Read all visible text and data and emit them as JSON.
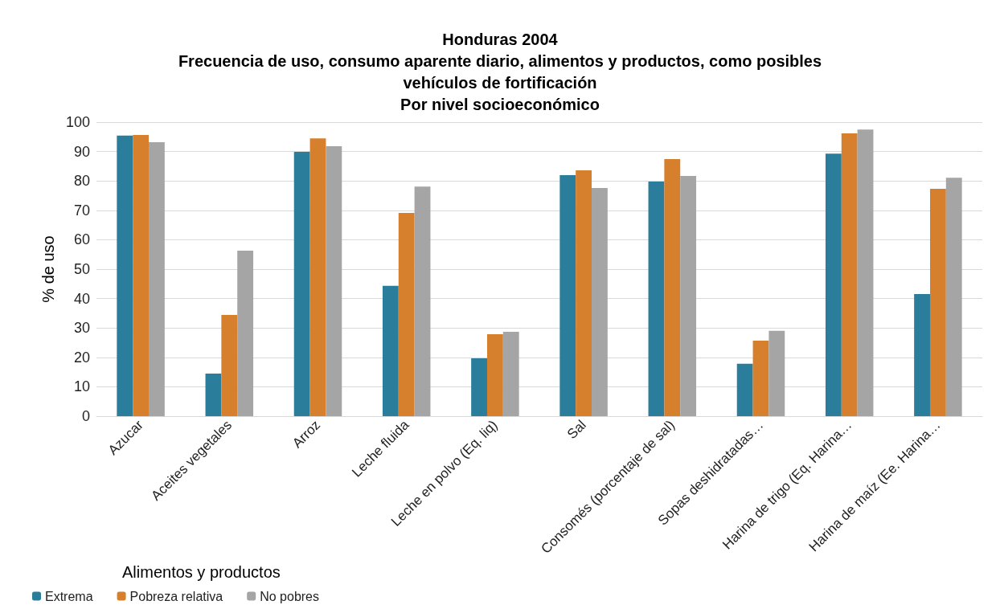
{
  "chart_data": {
    "type": "bar",
    "title": "Honduras 2004\nFrecuencia de uso, consumo aparente diario, alimentos y productos, como posibles\nvehículos de fortificación\nPor nivel socioeconómico",
    "ylabel": "% de uso",
    "legend_title": "Alimentos y productos",
    "categories": [
      "Azucar",
      "Aceites vegetales",
      "Arroz",
      "Leche fluida",
      "Leche en polvo (Eq. liq)",
      "Sal",
      "Consomés (porcentaje de sal)",
      "Sopas deshidratadas…",
      "Harina de trigo (Eq. Harina…",
      "Harina de maíz (Ee. Harina…"
    ],
    "series": [
      {
        "name": "Extrema",
        "color": "#2a7d9b",
        "values": [
          95.4,
          14.5,
          89.9,
          44.3,
          19.7,
          82,
          79.8,
          17.8,
          89.3,
          41.5
        ]
      },
      {
        "name": "Pobreza relativa",
        "color": "#d67f2c",
        "values": [
          95.6,
          34.4,
          94.5,
          69.1,
          27.9,
          83.6,
          87.4,
          25.7,
          96.2,
          77.3
        ]
      },
      {
        "name": "No pobres",
        "color": "#a5a5a5",
        "values": [
          93.2,
          56.3,
          91.8,
          78.1,
          28.7,
          77.6,
          81.7,
          29,
          97.5,
          81.1
        ]
      }
    ],
    "ylim": [
      0,
      100
    ],
    "yticks": [
      0,
      10,
      20,
      30,
      40,
      50,
      60,
      70,
      80,
      90,
      100
    ],
    "grid": "y",
    "legend": "bottom left"
  }
}
